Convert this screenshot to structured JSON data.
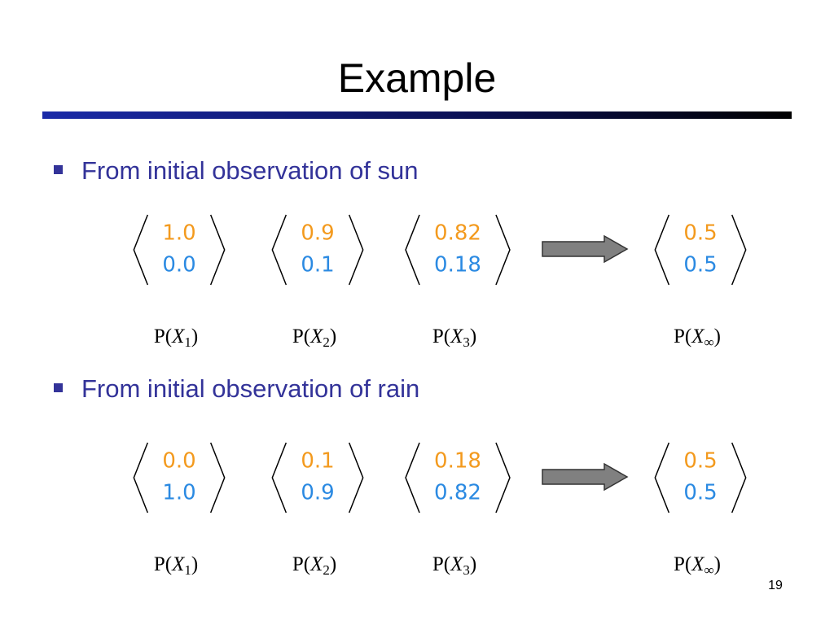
{
  "title": "Example",
  "sections": [
    {
      "bullet": "From initial observation of sun",
      "distributions": [
        {
          "top": "1.0",
          "bottom": "0.0",
          "label": [
            "P(",
            "X",
            "1",
            ")"
          ]
        },
        {
          "top": "0.9",
          "bottom": "0.1",
          "label": [
            "P(",
            "X",
            "2",
            ")"
          ]
        },
        {
          "top": "0.82",
          "bottom": "0.18",
          "label": [
            "P(",
            "X",
            "3",
            ")"
          ]
        },
        {
          "top": "0.5",
          "bottom": "0.5",
          "label": [
            "P(",
            "X",
            "∞",
            ")"
          ]
        }
      ]
    },
    {
      "bullet": "From initial observation of rain",
      "distributions": [
        {
          "top": "0.0",
          "bottom": "1.0",
          "label": [
            "P(",
            "X",
            "1",
            ")"
          ]
        },
        {
          "top": "0.1",
          "bottom": "0.9",
          "label": [
            "P(",
            "X",
            "2",
            ")"
          ]
        },
        {
          "top": "0.18",
          "bottom": "0.82",
          "label": [
            "P(",
            "X",
            "3",
            ")"
          ]
        },
        {
          "top": "0.5",
          "bottom": "0.5",
          "label": [
            "P(",
            "X",
            "∞",
            ")"
          ]
        }
      ]
    }
  ],
  "page_number": "19"
}
